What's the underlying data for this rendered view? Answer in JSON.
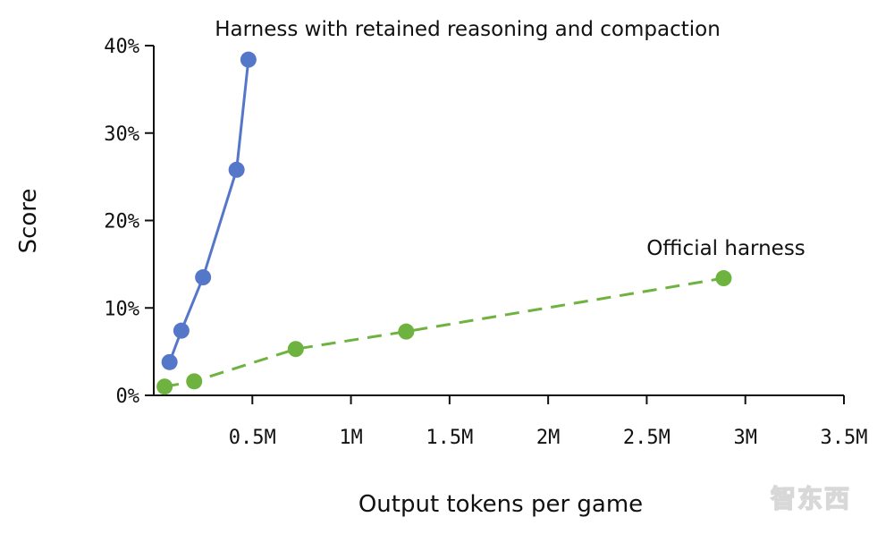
{
  "chart_data": {
    "type": "line",
    "xlabel": "Output tokens per game",
    "ylabel": "Score",
    "xlim": [
      0,
      3500000
    ],
    "ylim": [
      0,
      40
    ],
    "x_ticks": [
      {
        "value": 500000,
        "label": "0.5M"
      },
      {
        "value": 1000000,
        "label": "1M"
      },
      {
        "value": 1500000,
        "label": "1.5M"
      },
      {
        "value": 2000000,
        "label": "2M"
      },
      {
        "value": 2500000,
        "label": "2.5M"
      },
      {
        "value": 3000000,
        "label": "3M"
      },
      {
        "value": 3500000,
        "label": "3.5M"
      }
    ],
    "y_ticks": [
      {
        "value": 0,
        "label": "0%"
      },
      {
        "value": 10,
        "label": "10%"
      },
      {
        "value": 20,
        "label": "20%"
      },
      {
        "value": 30,
        "label": "30%"
      },
      {
        "value": 40,
        "label": "40%"
      }
    ],
    "series": [
      {
        "name": "Harness with retained reasoning and compaction",
        "color": "#5577c9",
        "style": "solid",
        "points": [
          {
            "x": 80000,
            "y": 3.8
          },
          {
            "x": 140000,
            "y": 7.4
          },
          {
            "x": 250000,
            "y": 13.5
          },
          {
            "x": 420000,
            "y": 25.8
          },
          {
            "x": 480000,
            "y": 38.4
          }
        ]
      },
      {
        "name": "Official harness",
        "color": "#6eb23f",
        "style": "dashed",
        "points": [
          {
            "x": 55000,
            "y": 1.0
          },
          {
            "x": 205000,
            "y": 1.6
          },
          {
            "x": 720000,
            "y": 5.3
          },
          {
            "x": 1280000,
            "y": 7.3
          },
          {
            "x": 2890000,
            "y": 13.4
          }
        ]
      }
    ],
    "grid": false,
    "legend": "none"
  },
  "watermark": {
    "text": "智东西"
  }
}
